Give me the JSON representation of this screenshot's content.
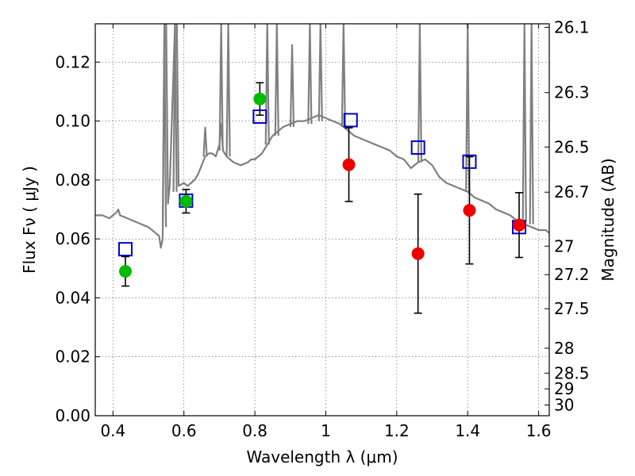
{
  "chart_data": {
    "type": "scatter",
    "xlabel": "Wavelength  λ (μm)",
    "ylabel": "Flux  Fν  ( μJy )",
    "y2label": "Magnitude (AB)",
    "xlim": [
      0.35,
      1.63
    ],
    "ylim": [
      0.0,
      0.133
    ],
    "grid": true,
    "x_ticks": [
      {
        "value": 0.4,
        "label": "0.4"
      },
      {
        "value": 0.6,
        "label": "0.6"
      },
      {
        "value": 0.8,
        "label": "0.8"
      },
      {
        "value": 1.0,
        "label": "1"
      },
      {
        "value": 1.2,
        "label": "1.2"
      },
      {
        "value": 1.4,
        "label": "1.4"
      },
      {
        "value": 1.6,
        "label": "1.6"
      }
    ],
    "y_ticks": [
      {
        "value": 0.0,
        "label": "0.00"
      },
      {
        "value": 0.02,
        "label": "0.02"
      },
      {
        "value": 0.04,
        "label": "0.04"
      },
      {
        "value": 0.06,
        "label": "0.06"
      },
      {
        "value": 0.08,
        "label": "0.08"
      },
      {
        "value": 0.1,
        "label": "0.10"
      },
      {
        "value": 0.12,
        "label": "0.12"
      }
    ],
    "y2_ticks": [
      {
        "mag": 26.1,
        "label": "26.1"
      },
      {
        "mag": 26.3,
        "label": "26.3"
      },
      {
        "mag": 26.5,
        "label": "26.5"
      },
      {
        "mag": 26.7,
        "label": "26.7"
      },
      {
        "mag": 27.0,
        "label": "27"
      },
      {
        "mag": 27.2,
        "label": "27.2"
      },
      {
        "mag": 27.5,
        "label": "27.5"
      },
      {
        "mag": 28.0,
        "label": "28"
      },
      {
        "mag": 28.5,
        "label": "28.5"
      },
      {
        "mag": 29.0,
        "label": "29"
      },
      {
        "mag": 30.0,
        "label": "30"
      }
    ],
    "series": [
      {
        "role": "model-spectrum",
        "style": "line",
        "color": "#808080",
        "points": [
          [
            0.35,
            0.068
          ],
          [
            0.37,
            0.068
          ],
          [
            0.39,
            0.067
          ],
          [
            0.4,
            0.068
          ],
          [
            0.41,
            0.069
          ],
          [
            0.415,
            0.07
          ],
          [
            0.42,
            0.068
          ],
          [
            0.44,
            0.067
          ],
          [
            0.46,
            0.066
          ],
          [
            0.48,
            0.065
          ],
          [
            0.5,
            0.064
          ],
          [
            0.52,
            0.062
          ],
          [
            0.53,
            0.061
          ],
          [
            0.535,
            0.057
          ],
          [
            0.54,
            0.06
          ],
          [
            0.545,
            0.133
          ],
          [
            0.55,
            0.133
          ],
          [
            0.555,
            0.072
          ],
          [
            0.56,
            0.078
          ],
          [
            0.575,
            0.133
          ],
          [
            0.58,
            0.133
          ],
          [
            0.585,
            0.078
          ],
          [
            0.6,
            0.079
          ],
          [
            0.61,
            0.078
          ],
          [
            0.62,
            0.079
          ],
          [
            0.63,
            0.08
          ],
          [
            0.64,
            0.082
          ],
          [
            0.65,
            0.085
          ],
          [
            0.66,
            0.088
          ],
          [
            0.67,
            0.089
          ],
          [
            0.68,
            0.089
          ],
          [
            0.69,
            0.088
          ],
          [
            0.7,
            0.092
          ],
          [
            0.705,
            0.099
          ],
          [
            0.71,
            0.09
          ],
          [
            0.72,
            0.088
          ],
          [
            0.74,
            0.086
          ],
          [
            0.76,
            0.085
          ],
          [
            0.78,
            0.086
          ],
          [
            0.79,
            0.087
          ],
          [
            0.8,
            0.087
          ],
          [
            0.81,
            0.088
          ],
          [
            0.82,
            0.089
          ],
          [
            0.83,
            0.091
          ],
          [
            0.84,
            0.093
          ],
          [
            0.85,
            0.095
          ],
          [
            0.86,
            0.096
          ],
          [
            0.87,
            0.097
          ],
          [
            0.88,
            0.098
          ],
          [
            0.9,
            0.099
          ],
          [
            0.92,
            0.1
          ],
          [
            0.94,
            0.1
          ],
          [
            0.96,
            0.101
          ],
          [
            0.98,
            0.102
          ],
          [
            1.0,
            0.101
          ],
          [
            1.02,
            0.1
          ],
          [
            1.04,
            0.099
          ],
          [
            1.06,
            0.097
          ],
          [
            1.08,
            0.095
          ],
          [
            1.1,
            0.094
          ],
          [
            1.12,
            0.093
          ],
          [
            1.14,
            0.092
          ],
          [
            1.16,
            0.091
          ],
          [
            1.18,
            0.09
          ],
          [
            1.2,
            0.088
          ],
          [
            1.22,
            0.087
          ],
          [
            1.24,
            0.084
          ],
          [
            1.26,
            0.086
          ],
          [
            1.28,
            0.087
          ],
          [
            1.3,
            0.085
          ],
          [
            1.32,
            0.081
          ],
          [
            1.34,
            0.079
          ],
          [
            1.36,
            0.078
          ],
          [
            1.38,
            0.077
          ],
          [
            1.4,
            0.076
          ],
          [
            1.42,
            0.074
          ],
          [
            1.44,
            0.073
          ],
          [
            1.46,
            0.072
          ],
          [
            1.48,
            0.07
          ],
          [
            1.5,
            0.069
          ],
          [
            1.52,
            0.068
          ],
          [
            1.54,
            0.066
          ],
          [
            1.56,
            0.065
          ],
          [
            1.58,
            0.064
          ],
          [
            1.6,
            0.063
          ],
          [
            1.62,
            0.063
          ],
          [
            1.63,
            0.062
          ]
        ],
        "spikes": [
          {
            "x": 0.545,
            "base": 0.064,
            "peak": 0.133
          },
          {
            "x": 0.575,
            "base": 0.076,
            "peak": 0.133
          },
          {
            "x": 0.66,
            "base": 0.088,
            "peak": 0.098
          },
          {
            "x": 0.705,
            "base": 0.09,
            "peak": 0.133
          },
          {
            "x": 0.725,
            "base": 0.088,
            "peak": 0.133
          },
          {
            "x": 0.835,
            "base": 0.092,
            "peak": 0.133
          },
          {
            "x": 0.862,
            "base": 0.095,
            "peak": 0.133
          },
          {
            "x": 0.905,
            "base": 0.098,
            "peak": 0.126
          },
          {
            "x": 0.955,
            "base": 0.099,
            "peak": 0.133
          },
          {
            "x": 0.985,
            "base": 0.1,
            "peak": 0.133
          },
          {
            "x": 1.05,
            "base": 0.098,
            "peak": 0.133
          },
          {
            "x": 1.265,
            "base": 0.086,
            "peak": 0.133
          },
          {
            "x": 1.4,
            "base": 0.076,
            "peak": 0.133
          },
          {
            "x": 1.56,
            "base": 0.066,
            "peak": 0.133
          },
          {
            "x": 1.58,
            "base": 0.065,
            "peak": 0.133
          }
        ]
      },
      {
        "role": "model-photometry",
        "style": "open-square",
        "color": "#0000cc",
        "points": [
          {
            "x": 0.435,
            "y": 0.0565
          },
          {
            "x": 0.606,
            "y": 0.073
          },
          {
            "x": 0.814,
            "y": 0.1015
          },
          {
            "x": 1.07,
            "y": 0.1003
          },
          {
            "x": 1.26,
            "y": 0.091
          },
          {
            "x": 1.405,
            "y": 0.0862
          },
          {
            "x": 1.545,
            "y": 0.064
          }
        ]
      },
      {
        "role": "detections",
        "style": "filled-circle",
        "color": "#00bb00",
        "points": [
          {
            "x": 0.435,
            "y": 0.049,
            "err": 0.005
          },
          {
            "x": 0.606,
            "y": 0.0728,
            "err": 0.004
          },
          {
            "x": 0.814,
            "y": 0.1075,
            "err": 0.0055
          }
        ]
      },
      {
        "role": "measurements",
        "style": "filled-circle",
        "color": "#ee0000",
        "points": [
          {
            "x": 1.065,
            "y": 0.0852,
            "err": 0.0125
          },
          {
            "x": 1.26,
            "y": 0.055,
            "err": 0.0202
          },
          {
            "x": 1.405,
            "y": 0.0697,
            "err": 0.0182
          },
          {
            "x": 1.545,
            "y": 0.0647,
            "err": 0.011
          }
        ]
      }
    ]
  }
}
